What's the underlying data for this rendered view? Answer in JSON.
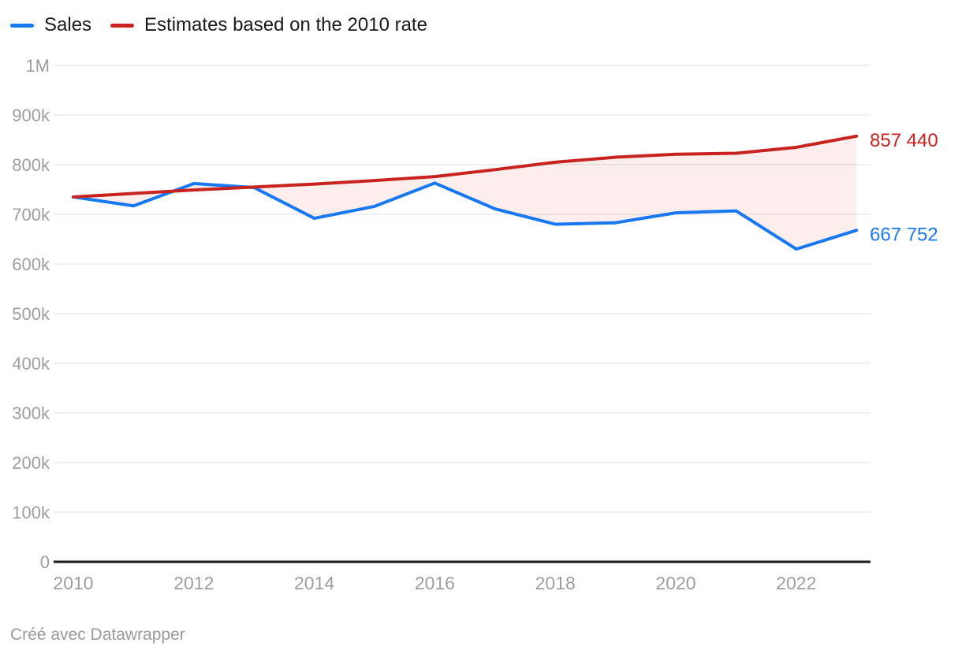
{
  "legend": {
    "items": [
      {
        "id": "sales",
        "label": "Sales",
        "color": "#1878f2"
      },
      {
        "id": "estimates",
        "label": "Estimates based on the 2010 rate",
        "color": "#c8231f"
      }
    ]
  },
  "chart_data": {
    "type": "line",
    "title": "",
    "x": [
      2010,
      2011,
      2012,
      2013,
      2014,
      2015,
      2016,
      2017,
      2018,
      2019,
      2020,
      2021,
      2022,
      2023
    ],
    "series": [
      {
        "id": "sales",
        "name": "Sales",
        "color": "#1878f2",
        "values": [
          735000,
          717000,
          762000,
          754000,
          692000,
          716000,
          763000,
          711000,
          680000,
          683000,
          703000,
          707000,
          630000,
          667752
        ],
        "end_label": "667 752"
      },
      {
        "id": "estimates",
        "name": "Estimates based on the 2010 rate",
        "color": "#c8231f",
        "values": [
          735000,
          742000,
          749000,
          755000,
          761000,
          768000,
          776000,
          790000,
          805000,
          815000,
          821000,
          823000,
          835000,
          857440
        ],
        "end_label": "857 440"
      }
    ],
    "fill_between": {
      "color": "#c8231f",
      "opacity": 0.08
    },
    "ylim": [
      0,
      1000000
    ],
    "yticks": [
      {
        "value": 0,
        "label": "0"
      },
      {
        "value": 100000,
        "label": "100k"
      },
      {
        "value": 200000,
        "label": "200k"
      },
      {
        "value": 300000,
        "label": "300k"
      },
      {
        "value": 400000,
        "label": "400k"
      },
      {
        "value": 500000,
        "label": "500k"
      },
      {
        "value": 600000,
        "label": "600k"
      },
      {
        "value": 700000,
        "label": "700k"
      },
      {
        "value": 800000,
        "label": "800k"
      },
      {
        "value": 900000,
        "label": "900k"
      },
      {
        "value": 1000000,
        "label": "1M"
      }
    ],
    "xticks": [
      2010,
      2012,
      2014,
      2016,
      2018,
      2020,
      2022
    ],
    "grid": "horizontal",
    "legend_position": "top-left"
  },
  "colors": {
    "grid": "#e7e7e7",
    "axis": "#1a1a1a",
    "tick": "#9e9e9e",
    "background": "#ffffff"
  },
  "footer": {
    "credit": "Créé avec Datawrapper"
  }
}
